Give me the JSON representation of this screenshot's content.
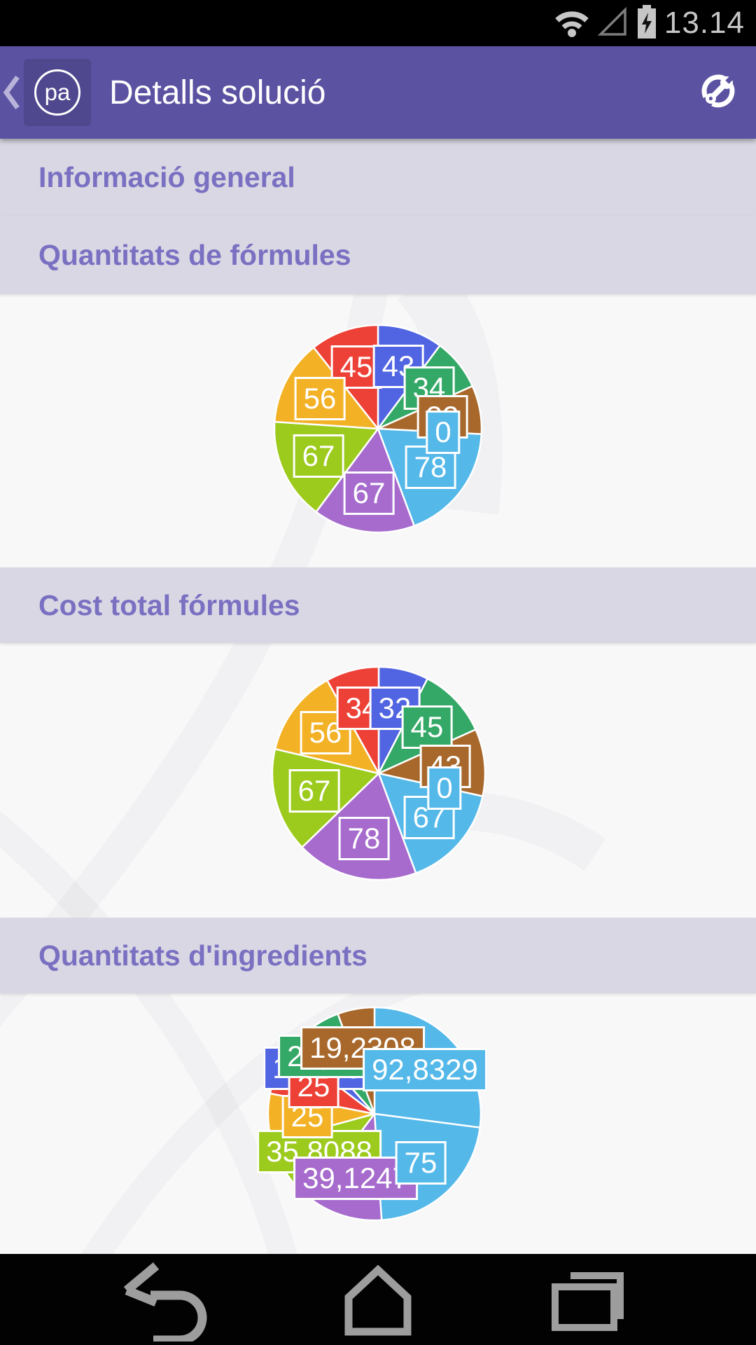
{
  "status_bar": {
    "time": "13.14",
    "icons": [
      "wifi-icon",
      "signal-empty-icon",
      "battery-charging-icon"
    ]
  },
  "app_bar": {
    "title": "Detalls solució",
    "logo_text": "pa",
    "icons": [
      "back-chevron-icon",
      "wrench-circle-icon"
    ]
  },
  "section_headers": {
    "informacio_general": "Informació general",
    "quantitats_formules": "Quantitats de fórmules",
    "cost_total_formules": "Cost total fórmules",
    "quantitats_ingredients": "Quantitats d'ingredients"
  },
  "palette": {
    "red": "#ed4036",
    "blue": "#5164e2",
    "green": "#34a866",
    "brown": "#a8682b",
    "lightblue": "#54b8e9",
    "purple": "#a66bcd",
    "lime": "#9cca1d",
    "amber": "#f3b126",
    "appbar": "#5b52a2",
    "band_bg": "#d8d7e3",
    "band_text": "#7a70c2"
  },
  "chart_data": [
    {
      "type": "pie",
      "title": "Quantitats de fórmules",
      "legend": "off",
      "slices": [
        {
          "label": "43",
          "value": 43,
          "color": "#5164e2",
          "z": 5
        },
        {
          "label": "34",
          "value": 34,
          "color": "#34a866",
          "z": 6
        },
        {
          "label": "32",
          "value": 32,
          "color": "#a8682b",
          "z": 7
        },
        {
          "label": "0",
          "value": 0,
          "color": "#54b8e9",
          "z": 9
        },
        {
          "label": "78",
          "value": 78,
          "color": "#54b8e9",
          "z": 8
        },
        {
          "label": "67",
          "value": 67,
          "color": "#a66bcd",
          "z": 4
        },
        {
          "label": "67",
          "value": 67,
          "color": "#9cca1d",
          "z": 3
        },
        {
          "label": "56",
          "value": 56,
          "color": "#f3b126",
          "z": 2
        },
        {
          "label": "45",
          "value": 45,
          "color": "#ed4036",
          "z": 1
        }
      ]
    },
    {
      "type": "pie",
      "title": "Cost total fórmules",
      "legend": "off",
      "slices": [
        {
          "label": "32",
          "value": 32,
          "color": "#5164e2",
          "z": 4
        },
        {
          "label": "45",
          "value": 45,
          "color": "#34a866",
          "z": 5
        },
        {
          "label": "43",
          "value": 43,
          "color": "#a8682b",
          "z": 6
        },
        {
          "label": "0",
          "value": 0,
          "color": "#54b8e9",
          "z": 9
        },
        {
          "label": "67",
          "value": 67,
          "color": "#54b8e9",
          "z": 7
        },
        {
          "label": "78",
          "value": 78,
          "color": "#a66bcd",
          "z": 8
        },
        {
          "label": "67",
          "value": 67,
          "color": "#9cca1d",
          "z": 3
        },
        {
          "label": "56",
          "value": 56,
          "color": "#f3b126",
          "z": 1
        },
        {
          "label": "34",
          "value": 34,
          "color": "#ed4036",
          "z": 2
        }
      ]
    },
    {
      "type": "pie",
      "title": "Quantitats d'ingredients",
      "legend": "off",
      "slices": [
        {
          "label": "92,8329",
          "value": 92.8329,
          "color": "#54b8e9",
          "z": 9
        },
        {
          "label": "75",
          "value": 75,
          "color": "#54b8e9",
          "z": 8
        },
        {
          "label": "39,1247",
          "value": 39.1247,
          "color": "#a66bcd",
          "z": 3
        },
        {
          "label": "35,8088",
          "value": 35.8088,
          "color": "#9cca1d",
          "z": 2
        },
        {
          "label": "25",
          "value": 25,
          "color": "#f3b126",
          "z": 4
        },
        {
          "label": "25",
          "value": 25,
          "color": "#ed4036",
          "z": 5
        },
        {
          "label": "10,7692",
          "value": 10.7692,
          "color": "#5164e2",
          "z": 1
        },
        {
          "label": "20,2564",
          "value": 20.2564,
          "color": "#34a866",
          "z": 6
        },
        {
          "label": "19,2308",
          "value": 19.2308,
          "color": "#a8682b",
          "z": 7
        }
      ]
    }
  ]
}
